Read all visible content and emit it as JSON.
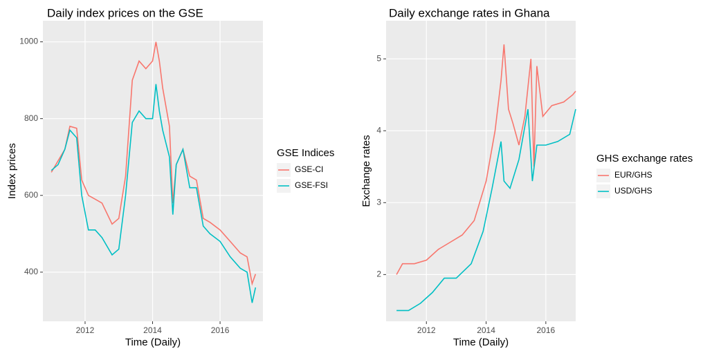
{
  "chart_data": [
    {
      "type": "line",
      "title": "Daily index prices on the GSE",
      "x_label": "Time (Daily)",
      "y_label": "Index prices",
      "legend_title": "GSE Indices",
      "grid": true,
      "xlim": [
        2010.75,
        2017.27
      ],
      "xticks": [
        2012,
        2014,
        2016
      ],
      "ylim": [
        272,
        1055
      ],
      "yticks": [
        400,
        600,
        800,
        1000
      ],
      "series": [
        {
          "name": "GSE-CI",
          "color": "#f8766d",
          "x": [
            2011.0,
            2011.2,
            2011.4,
            2011.55,
            2011.75,
            2011.9,
            2012.1,
            2012.3,
            2012.5,
            2012.8,
            2013.0,
            2013.2,
            2013.4,
            2013.6,
            2013.8,
            2014.0,
            2014.1,
            2014.2,
            2014.3,
            2014.5,
            2014.6,
            2014.7,
            2014.9,
            2015.1,
            2015.3,
            2015.5,
            2015.7,
            2016.0,
            2016.3,
            2016.6,
            2016.8,
            2016.95,
            2017.05
          ],
          "values": [
            660,
            690,
            720,
            780,
            775,
            640,
            600,
            590,
            580,
            525,
            540,
            650,
            900,
            950,
            930,
            950,
            1000,
            950,
            880,
            780,
            580,
            680,
            720,
            650,
            640,
            540,
            530,
            510,
            480,
            450,
            440,
            370,
            395
          ]
        },
        {
          "name": "GSE-FSI",
          "color": "#00bfc4",
          "x": [
            2011.0,
            2011.2,
            2011.4,
            2011.55,
            2011.75,
            2011.9,
            2012.1,
            2012.3,
            2012.5,
            2012.8,
            2013.0,
            2013.2,
            2013.4,
            2013.6,
            2013.8,
            2014.0,
            2014.1,
            2014.2,
            2014.3,
            2014.5,
            2014.6,
            2014.7,
            2014.9,
            2015.1,
            2015.3,
            2015.5,
            2015.7,
            2016.0,
            2016.3,
            2016.6,
            2016.8,
            2016.95,
            2017.05
          ],
          "values": [
            665,
            680,
            720,
            770,
            750,
            600,
            510,
            510,
            490,
            445,
            460,
            600,
            790,
            820,
            800,
            800,
            890,
            820,
            770,
            700,
            550,
            680,
            720,
            620,
            620,
            520,
            500,
            480,
            440,
            410,
            400,
            320,
            360
          ]
        }
      ]
    },
    {
      "type": "line",
      "title": "Daily exchange rates in Ghana",
      "x_label": "Time (Daily)",
      "y_label": "Exchange rates",
      "legend_title": "GHS exchange rates",
      "grid": true,
      "xlim": [
        2010.65,
        2017.0
      ],
      "xticks": [
        2012,
        2014,
        2016
      ],
      "ylim": [
        1.35,
        5.53
      ],
      "yticks": [
        2,
        3,
        4,
        5
      ],
      "series": [
        {
          "name": "EUR/GHS",
          "color": "#f8766d",
          "x": [
            2011.0,
            2011.2,
            2011.6,
            2012.0,
            2012.4,
            2012.8,
            2013.2,
            2013.6,
            2014.0,
            2014.3,
            2014.5,
            2014.6,
            2014.75,
            2014.9,
            2015.1,
            2015.3,
            2015.5,
            2015.6,
            2015.7,
            2015.9,
            2016.2,
            2016.6,
            2016.9,
            2017.0
          ],
          "values": [
            2.0,
            2.15,
            2.15,
            2.2,
            2.35,
            2.45,
            2.55,
            2.75,
            3.3,
            4.0,
            4.7,
            5.2,
            4.3,
            4.1,
            3.8,
            4.2,
            5.0,
            3.5,
            4.9,
            4.2,
            4.35,
            4.4,
            4.5,
            4.55
          ]
        },
        {
          "name": "USD/GHS",
          "color": "#00bfc4",
          "x": [
            2011.0,
            2011.4,
            2011.8,
            2012.2,
            2012.6,
            2013.0,
            2013.5,
            2013.9,
            2014.2,
            2014.5,
            2014.6,
            2014.8,
            2015.1,
            2015.4,
            2015.55,
            2015.7,
            2016.0,
            2016.4,
            2016.8,
            2017.0
          ],
          "values": [
            1.5,
            1.5,
            1.6,
            1.75,
            1.95,
            1.95,
            2.15,
            2.6,
            3.2,
            3.85,
            3.3,
            3.2,
            3.6,
            4.3,
            3.3,
            3.8,
            3.8,
            3.85,
            3.95,
            4.3
          ]
        }
      ]
    }
  ]
}
